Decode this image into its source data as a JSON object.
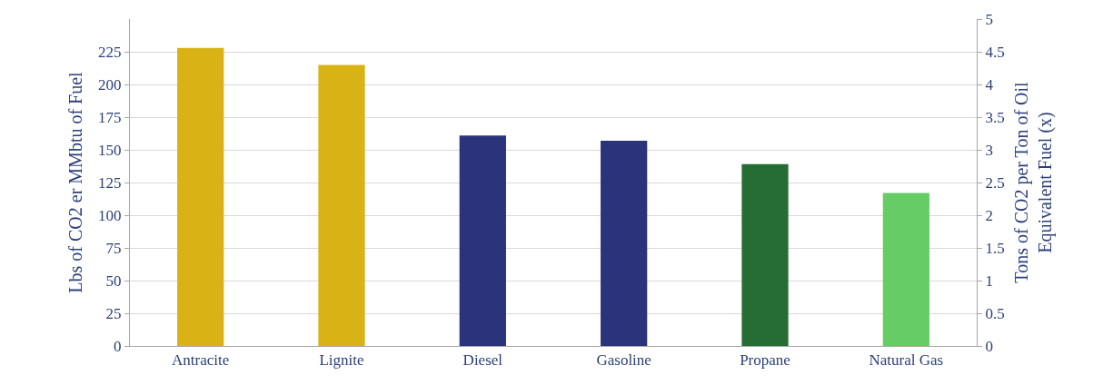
{
  "chart_data": {
    "type": "bar",
    "categories": [
      "Antracite",
      "Lignite",
      "Diesel",
      "Gasoline",
      "Propane",
      "Natural Gas"
    ],
    "values": [
      228,
      215,
      161,
      157,
      139,
      117
    ],
    "colors": [
      "#d9b215",
      "#d9b215",
      "#2b347a",
      "#2b347a",
      "#256d35",
      "#66cc66"
    ],
    "ylabel": "Lbs of CO2 er MMbtu of Fuel",
    "y2label": "Tons of CO2 per Ton of Oil\nEquivalent Fuel (x)",
    "ylim": [
      0,
      250
    ],
    "yticks": [
      0,
      25,
      50,
      75,
      100,
      125,
      150,
      175,
      200,
      225
    ],
    "y2lim": [
      0,
      5
    ],
    "y2ticks": [
      0,
      0.5,
      1,
      1.5,
      2,
      2.5,
      3,
      3.5,
      4,
      4.5,
      5
    ],
    "grid": "y"
  }
}
